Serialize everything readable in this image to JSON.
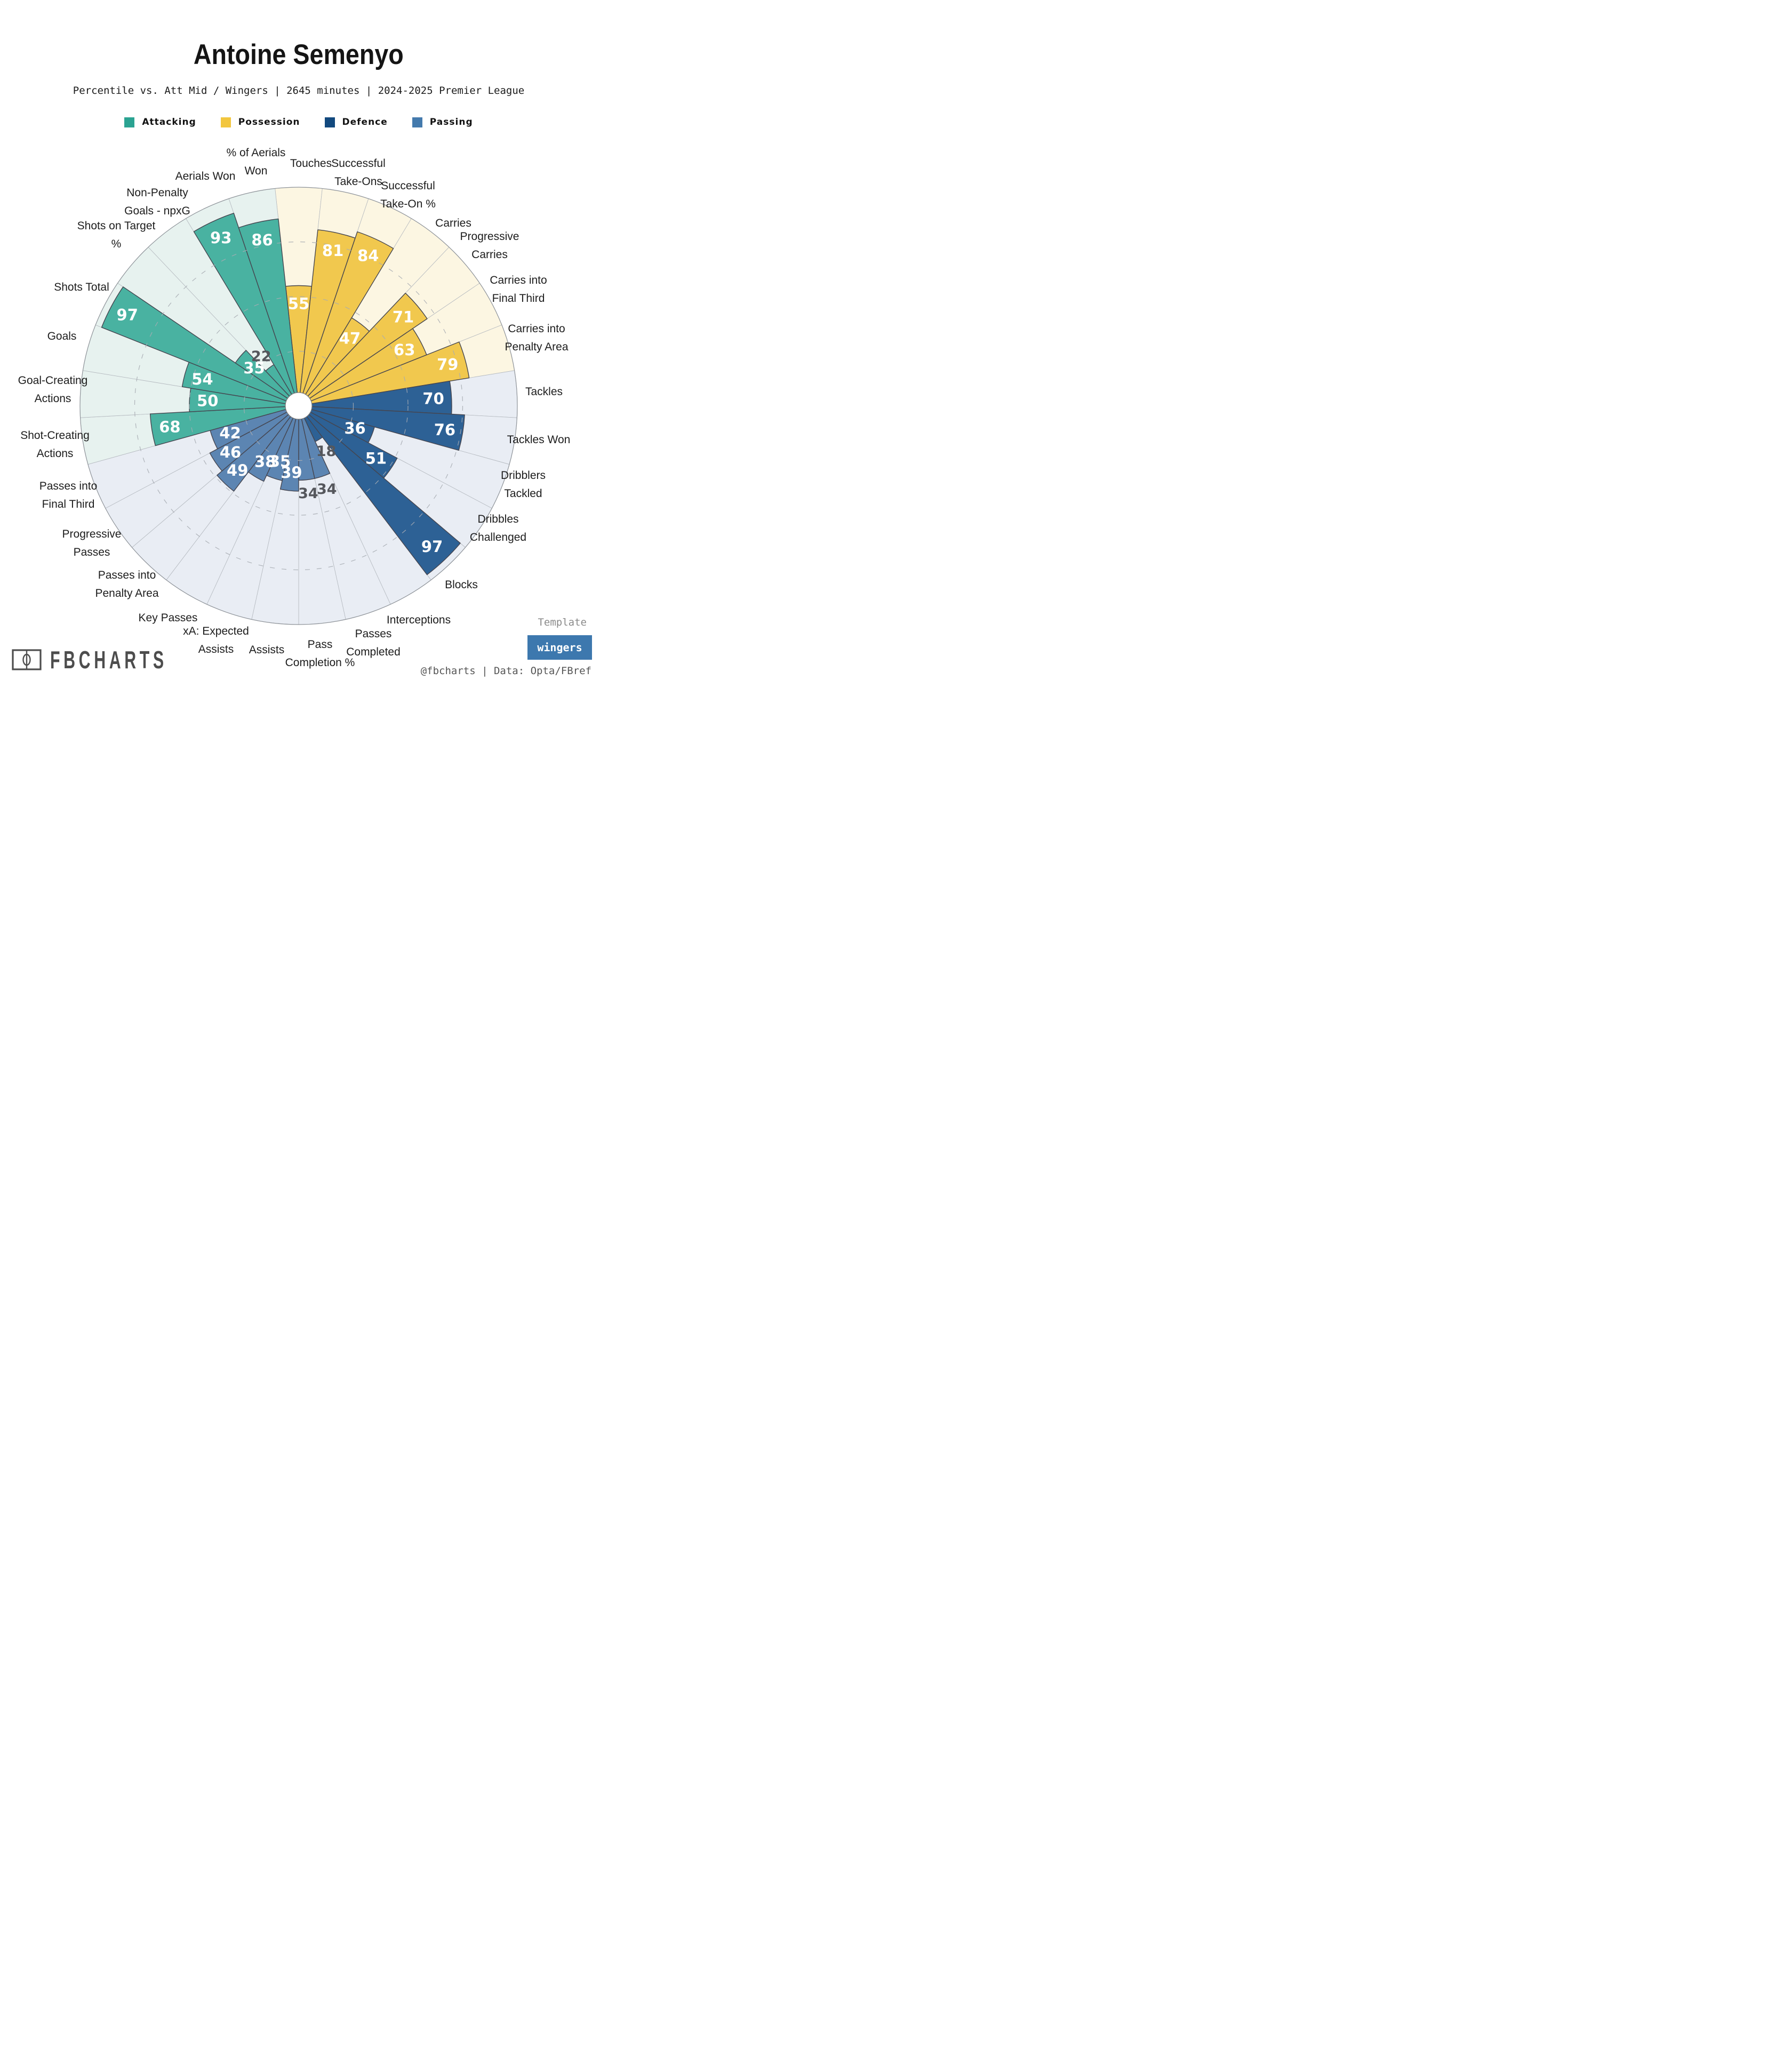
{
  "title": "Antoine Semenyo",
  "subtitle": "Percentile vs. Att Mid / Wingers | 2645 minutes | 2024-2025 Premier League",
  "legend": {
    "items": [
      {
        "label": "Attacking",
        "color": "#2ba392"
      },
      {
        "label": "Possession",
        "color": "#f2c63e"
      },
      {
        "label": "Defence",
        "color": "#12497e"
      },
      {
        "label": "Passing",
        "color": "#447aad"
      }
    ]
  },
  "chart_data": {
    "type": "bar",
    "variant": "polar-pizza-percentile",
    "title": "Antoine Semenyo",
    "ylim": [
      0,
      100
    ],
    "grid": "dashed-rings",
    "rings_dashed_at": [
      25,
      50,
      75
    ],
    "groups": {
      "attacking": {
        "label": "Attacking",
        "wedge": "#49b2a1",
        "bg": "#e7f2ef"
      },
      "possession": {
        "label": "Possession",
        "wedge": "#f1c84e",
        "bg": "#fcf6e2"
      },
      "defence": {
        "label": "Defence",
        "wedge": "#2d6195",
        "bg": "#e9edf4"
      },
      "passing": {
        "label": "Passing",
        "wedge": "#5c85b2",
        "bg": "#e9edf4"
      }
    },
    "slices": [
      {
        "label": "Touches",
        "lines": [
          "Touches"
        ],
        "value": 55,
        "group": "possession",
        "label_pos": [
          583,
          306
        ]
      },
      {
        "label": "Successful Take-Ons",
        "lines": [
          "Successful",
          "Take-Ons"
        ],
        "value": 81,
        "group": "possession",
        "label_pos": [
          672,
          323
        ]
      },
      {
        "label": "Successful Take-On %",
        "lines": [
          "Successful",
          "Take-On %"
        ],
        "value": 84,
        "group": "possession",
        "label_pos": [
          765,
          365
        ]
      },
      {
        "label": "Carries",
        "lines": [
          "Carries"
        ],
        "value": 47,
        "group": "possession",
        "label_pos": [
          850,
          418
        ]
      },
      {
        "label": "Progressive Carries",
        "lines": [
          "Progressive",
          "Carries"
        ],
        "value": 71,
        "group": "possession",
        "label_pos": [
          918,
          460
        ]
      },
      {
        "label": "Carries into Final Third",
        "lines": [
          "Carries into",
          "Final Third"
        ],
        "value": 63,
        "group": "possession",
        "label_pos": [
          972,
          542
        ]
      },
      {
        "label": "Carries into Penalty Area",
        "lines": [
          "Carries into",
          "Penalty Area"
        ],
        "value": 79,
        "group": "possession",
        "label_pos": [
          1006,
          633
        ]
      },
      {
        "label": "Tackles",
        "lines": [
          "Tackles"
        ],
        "value": 70,
        "group": "defence",
        "label_pos": [
          1020,
          734
        ]
      },
      {
        "label": "Tackles Won",
        "lines": [
          "Tackles Won"
        ],
        "value": 76,
        "group": "defence",
        "label_pos": [
          1010,
          824
        ]
      },
      {
        "label": "Dribblers Tackled",
        "lines": [
          "Dribblers",
          "Tackled"
        ],
        "value": 36,
        "group": "defence",
        "label_pos": [
          981,
          908
        ]
      },
      {
        "label": "Dribbles Challenged",
        "lines": [
          "Dribbles",
          "Challenged"
        ],
        "value": 51,
        "group": "defence",
        "label_pos": [
          934,
          990
        ]
      },
      {
        "label": "Blocks",
        "lines": [
          "Blocks"
        ],
        "value": 97,
        "group": "defence",
        "label_pos": [
          865,
          1096
        ]
      },
      {
        "label": "Interceptions",
        "lines": [
          "Interceptions"
        ],
        "value": 18,
        "group": "defence",
        "label_pos": [
          785,
          1162
        ]
      },
      {
        "label": "Passes Completed",
        "lines": [
          "Passes",
          "Completed"
        ],
        "value": 34,
        "group": "passing",
        "label_pos": [
          700,
          1205
        ]
      },
      {
        "label": "Pass Completion %",
        "lines": [
          "Pass",
          "Completion %"
        ],
        "value": 34,
        "group": "passing",
        "label_pos": [
          600,
          1225
        ]
      },
      {
        "label": "Assists",
        "lines": [
          "Assists"
        ],
        "value": 39,
        "group": "passing",
        "label_pos": [
          500,
          1218
        ]
      },
      {
        "label": "xA: Expected Assists",
        "lines": [
          "xA: Expected",
          "Assists"
        ],
        "value": 35,
        "group": "passing",
        "label_pos": [
          405,
          1200
        ]
      },
      {
        "label": "Key Passes",
        "lines": [
          "Key Passes"
        ],
        "value": 38,
        "group": "passing",
        "label_pos": [
          315,
          1158
        ]
      },
      {
        "label": "Passes into Penalty Area",
        "lines": [
          "Passes into",
          "Penalty Area"
        ],
        "value": 49,
        "group": "passing",
        "label_pos": [
          238,
          1095
        ]
      },
      {
        "label": "Progressive Passes",
        "lines": [
          "Progressive",
          "Passes"
        ],
        "value": 46,
        "group": "passing",
        "label_pos": [
          172,
          1018
        ]
      },
      {
        "label": "Passes into Final Third",
        "lines": [
          "Passes into",
          "Final Third"
        ],
        "value": 42,
        "group": "passing",
        "label_pos": [
          128,
          928
        ]
      },
      {
        "label": "Shot-Creating Actions",
        "lines": [
          "Shot-Creating",
          "Actions"
        ],
        "value": 68,
        "group": "attacking",
        "label_pos": [
          103,
          833
        ]
      },
      {
        "label": "Goal-Creating Actions",
        "lines": [
          "Goal-Creating",
          "Actions"
        ],
        "value": 50,
        "group": "attacking",
        "label_pos": [
          99,
          730
        ]
      },
      {
        "label": "Goals",
        "lines": [
          "Goals"
        ],
        "value": 54,
        "group": "attacking",
        "label_pos": [
          116,
          630
        ]
      },
      {
        "label": "Shots Total",
        "lines": [
          "Shots Total"
        ],
        "value": 97,
        "group": "attacking",
        "label_pos": [
          153,
          538
        ]
      },
      {
        "label": "Shots on Target %",
        "lines": [
          "Shots on Target",
          "%"
        ],
        "value": 35,
        "group": "attacking",
        "label_pos": [
          218,
          440
        ]
      },
      {
        "label": "Non-Penalty Goals - npxG",
        "lines": [
          "Non-Penalty",
          "Goals - npxG"
        ],
        "value": 22,
        "group": "attacking",
        "label_pos": [
          295,
          378
        ]
      },
      {
        "label": "Aerials Won",
        "lines": [
          "Aerials Won"
        ],
        "value": 93,
        "group": "attacking",
        "label_pos": [
          385,
          330
        ]
      },
      {
        "label": "% of Aerials Won",
        "lines": [
          "% of Aerials",
          "Won"
        ],
        "value": 86,
        "group": "attacking",
        "label_pos": [
          480,
          303
        ]
      }
    ]
  },
  "footer": {
    "brand": "FBCHARTS",
    "template_label": "Template",
    "template_value": "wingers",
    "badge_color": "#3d78ae",
    "credit": "@fbcharts | Data: Opta/FBref"
  }
}
